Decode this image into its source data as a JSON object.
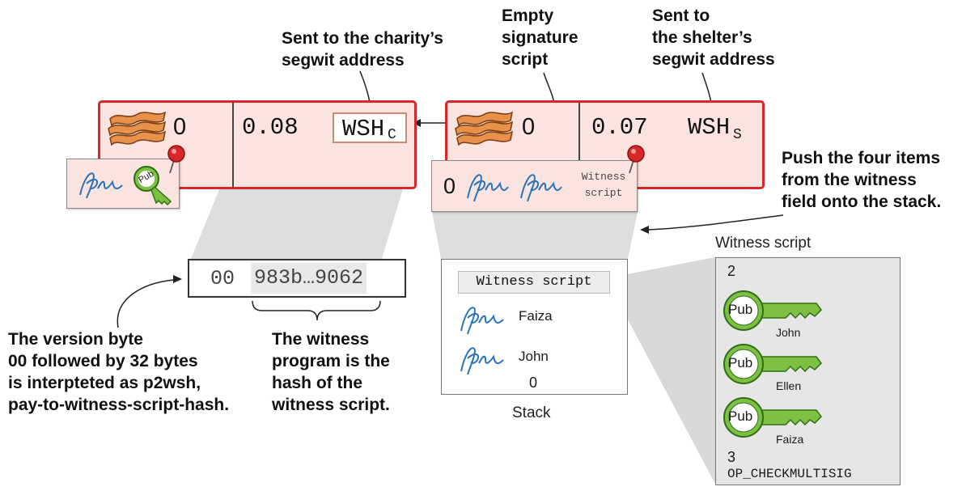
{
  "callouts": {
    "charity_address": [
      "Sent to the charity’s",
      "segwit address"
    ],
    "empty_sig": [
      "Empty",
      "signature",
      "script"
    ],
    "shelter_address": [
      "Sent to",
      "the shelter’s",
      "segwit address"
    ],
    "push_items": [
      "Push the four items",
      "from the witness",
      "field onto the stack."
    ],
    "version_byte": [
      "The version byte",
      "00 followed by 32 bytes",
      "is interpteted as p2wsh,",
      "pay-to-witness-script-hash."
    ],
    "witness_program": [
      "The witness",
      "program is the",
      "hash of the",
      "witness script."
    ]
  },
  "tx1": {
    "input_value": "0",
    "output_amount": "0.08",
    "output_script_main": "WSH",
    "output_script_sub": "C",
    "key_label": "Pub"
  },
  "tx2": {
    "input_value": "0",
    "output_amount": "0.07",
    "output_script_main": "WSH",
    "output_script_sub": "S",
    "witness_zero": "0",
    "witness_script_label_1": "Witness",
    "witness_script_label_2": "script"
  },
  "script_pubkey": {
    "version": "00",
    "program": "983b…9062"
  },
  "stack": {
    "label": "Stack",
    "top": "Witness script",
    "items": [
      "Faiza",
      "John"
    ],
    "bottom": "0"
  },
  "witness_script_panel": {
    "title": "Witness script",
    "m": "2",
    "keys": [
      {
        "label": "Pub",
        "owner": "John"
      },
      {
        "label": "Pub",
        "owner": "Ellen"
      },
      {
        "label": "Pub",
        "owner": "Faiza"
      }
    ],
    "n": "3",
    "opcode": "OP_CHECKMULTISIG"
  },
  "colors": {
    "tx_border": "#d62828",
    "tx_fill": "#fbe3e0",
    "key_green": "#7dc142",
    "signature_blue": "#2a73b8",
    "panel_gray": "#e6e6e6"
  }
}
